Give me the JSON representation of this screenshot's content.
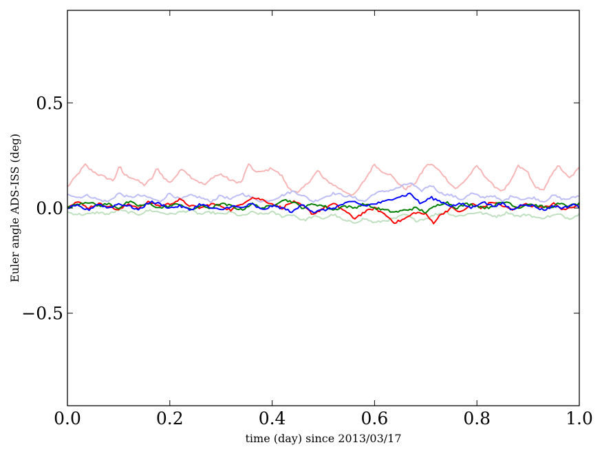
{
  "chart_data": {
    "type": "line",
    "title": "",
    "xlabel": "time (day) since 2013/03/17",
    "ylabel": "Euler angle ADS-ISS (deg)",
    "xlim": [
      0.0,
      1.0
    ],
    "ylim": [
      -0.94,
      0.94
    ],
    "xticks": [
      0.0,
      0.2,
      0.4,
      0.6,
      0.8,
      1.0
    ],
    "xtick_labels": [
      "0.0",
      "0.2",
      "0.4",
      "0.6",
      "0.8",
      "1.0"
    ],
    "yticks": [
      -0.5,
      0.0,
      0.5
    ],
    "ytick_labels": [
      "−0.5",
      "0.0",
      "0.5"
    ],
    "grid": false,
    "legend": "none",
    "series": [
      {
        "color": "#f7b6b6",
        "opacity": 1.0,
        "x": [
          0.0,
          0.02,
          0.036,
          0.04,
          0.06,
          0.08,
          0.09,
          0.102,
          0.11,
          0.13,
          0.15,
          0.165,
          0.175,
          0.19,
          0.2,
          0.215,
          0.225,
          0.24,
          0.26,
          0.27,
          0.285,
          0.3,
          0.32,
          0.34,
          0.355,
          0.36,
          0.38,
          0.4,
          0.42,
          0.43,
          0.45,
          0.47,
          0.49,
          0.5,
          0.52,
          0.54,
          0.56,
          0.58,
          0.6,
          0.61,
          0.63,
          0.65,
          0.66,
          0.68,
          0.7,
          0.71,
          0.73,
          0.75,
          0.76,
          0.78,
          0.8,
          0.81,
          0.83,
          0.85,
          0.865,
          0.88,
          0.9,
          0.91,
          0.93,
          0.95,
          0.96,
          0.98,
          1.0
        ],
        "y": [
          0.1,
          0.16,
          0.21,
          0.19,
          0.16,
          0.14,
          0.13,
          0.2,
          0.16,
          0.14,
          0.11,
          0.14,
          0.19,
          0.14,
          0.12,
          0.16,
          0.19,
          0.15,
          0.12,
          0.11,
          0.15,
          0.16,
          0.13,
          0.12,
          0.22,
          0.18,
          0.17,
          0.19,
          0.15,
          0.1,
          0.07,
          0.12,
          0.18,
          0.14,
          0.11,
          0.08,
          0.06,
          0.13,
          0.21,
          0.18,
          0.16,
          0.11,
          0.09,
          0.12,
          0.2,
          0.21,
          0.17,
          0.11,
          0.09,
          0.14,
          0.2,
          0.17,
          0.11,
          0.08,
          0.12,
          0.2,
          0.17,
          0.11,
          0.08,
          0.18,
          0.2,
          0.14,
          0.19
        ]
      },
      {
        "color": "#bdbdf5",
        "opacity": 1.0,
        "x": [
          0.0,
          0.02,
          0.04,
          0.06,
          0.08,
          0.1,
          0.12,
          0.14,
          0.16,
          0.18,
          0.2,
          0.22,
          0.24,
          0.26,
          0.28,
          0.3,
          0.32,
          0.34,
          0.36,
          0.38,
          0.4,
          0.42,
          0.44,
          0.46,
          0.48,
          0.5,
          0.52,
          0.54,
          0.56,
          0.58,
          0.6,
          0.62,
          0.64,
          0.66,
          0.67,
          0.69,
          0.71,
          0.73,
          0.75,
          0.77,
          0.79,
          0.81,
          0.83,
          0.85,
          0.87,
          0.89,
          0.91,
          0.93,
          0.95,
          0.97,
          0.99,
          1.0
        ],
        "y": [
          0.07,
          0.05,
          0.06,
          0.04,
          0.03,
          0.07,
          0.05,
          0.06,
          0.05,
          0.03,
          0.07,
          0.04,
          0.06,
          0.05,
          0.03,
          0.06,
          0.04,
          0.07,
          0.05,
          0.03,
          0.04,
          0.06,
          0.08,
          0.06,
          0.03,
          0.05,
          0.07,
          0.06,
          0.05,
          0.03,
          0.07,
          0.08,
          0.09,
          0.11,
          0.12,
          0.08,
          0.11,
          0.07,
          0.06,
          0.04,
          0.07,
          0.05,
          0.06,
          0.03,
          0.06,
          0.04,
          0.05,
          0.03,
          0.06,
          0.04,
          0.05,
          0.06
        ]
      },
      {
        "color": "#bfe0bf",
        "opacity": 1.0,
        "x": [
          0.0,
          0.02,
          0.04,
          0.06,
          0.08,
          0.1,
          0.12,
          0.14,
          0.16,
          0.18,
          0.2,
          0.22,
          0.24,
          0.26,
          0.28,
          0.3,
          0.32,
          0.34,
          0.36,
          0.38,
          0.4,
          0.42,
          0.44,
          0.46,
          0.48,
          0.5,
          0.52,
          0.54,
          0.56,
          0.58,
          0.6,
          0.62,
          0.64,
          0.66,
          0.68,
          0.7,
          0.72,
          0.74,
          0.76,
          0.78,
          0.8,
          0.82,
          0.84,
          0.86,
          0.88,
          0.9,
          0.92,
          0.94,
          0.96,
          0.98,
          1.0
        ],
        "y": [
          -0.02,
          -0.03,
          -0.03,
          -0.02,
          -0.03,
          -0.01,
          -0.02,
          -0.03,
          -0.01,
          -0.02,
          -0.03,
          -0.02,
          -0.01,
          -0.03,
          -0.02,
          -0.03,
          -0.02,
          -0.04,
          -0.02,
          -0.03,
          -0.02,
          -0.04,
          -0.03,
          -0.06,
          -0.04,
          -0.05,
          -0.03,
          -0.06,
          -0.07,
          -0.05,
          -0.07,
          -0.06,
          -0.05,
          -0.03,
          -0.06,
          -0.05,
          -0.03,
          -0.02,
          -0.04,
          -0.03,
          -0.02,
          -0.03,
          -0.04,
          -0.02,
          -0.04,
          -0.03,
          -0.05,
          -0.04,
          -0.03,
          -0.05,
          -0.03
        ]
      },
      {
        "color": "#ff0000",
        "opacity": 1.0,
        "x": [
          0.0,
          0.02,
          0.04,
          0.06,
          0.08,
          0.1,
          0.12,
          0.14,
          0.16,
          0.18,
          0.2,
          0.22,
          0.24,
          0.26,
          0.28,
          0.3,
          0.32,
          0.34,
          0.36,
          0.38,
          0.4,
          0.42,
          0.44,
          0.46,
          0.48,
          0.5,
          0.52,
          0.54,
          0.56,
          0.58,
          0.6,
          0.62,
          0.64,
          0.66,
          0.68,
          0.7,
          0.715,
          0.73,
          0.75,
          0.77,
          0.79,
          0.81,
          0.83,
          0.85,
          0.87,
          0.89,
          0.91,
          0.93,
          0.95,
          0.97,
          0.99,
          1.0
        ],
        "y": [
          0.01,
          0.03,
          0.0,
          0.02,
          0.01,
          -0.01,
          0.02,
          0.0,
          0.03,
          0.01,
          0.02,
          0.04,
          0.01,
          0.0,
          0.02,
          0.01,
          -0.01,
          0.02,
          0.05,
          0.04,
          0.02,
          0.0,
          0.03,
          0.01,
          -0.03,
          0.0,
          0.02,
          -0.01,
          -0.05,
          -0.02,
          0.0,
          -0.03,
          -0.07,
          -0.05,
          -0.02,
          -0.03,
          -0.07,
          -0.03,
          0.0,
          -0.02,
          0.02,
          0.0,
          0.03,
          0.01,
          -0.01,
          0.02,
          0.01,
          0.0,
          0.02,
          -0.01,
          0.01,
          0.02
        ]
      },
      {
        "color": "#008000",
        "opacity": 1.0,
        "x": [
          0.0,
          0.02,
          0.04,
          0.06,
          0.08,
          0.1,
          0.12,
          0.14,
          0.16,
          0.18,
          0.2,
          0.22,
          0.24,
          0.26,
          0.28,
          0.3,
          0.32,
          0.34,
          0.36,
          0.38,
          0.4,
          0.42,
          0.44,
          0.46,
          0.48,
          0.5,
          0.52,
          0.54,
          0.56,
          0.58,
          0.6,
          0.62,
          0.64,
          0.66,
          0.68,
          0.7,
          0.72,
          0.74,
          0.76,
          0.78,
          0.8,
          0.82,
          0.84,
          0.86,
          0.88,
          0.9,
          0.92,
          0.94,
          0.96,
          0.98,
          1.0
        ],
        "y": [
          0.0,
          0.02,
          0.03,
          0.01,
          0.02,
          0.0,
          0.03,
          0.01,
          0.02,
          0.0,
          0.01,
          0.02,
          -0.01,
          0.01,
          0.0,
          0.02,
          0.01,
          -0.01,
          0.02,
          0.0,
          0.01,
          0.04,
          0.03,
          0.0,
          0.02,
          0.01,
          -0.01,
          0.01,
          0.0,
          0.02,
          0.0,
          -0.01,
          -0.02,
          -0.01,
          0.0,
          -0.02,
          0.01,
          0.03,
          0.0,
          0.02,
          0.01,
          0.0,
          0.02,
          0.03,
          0.0,
          0.02,
          0.01,
          0.0,
          0.02,
          0.01,
          0.02
        ]
      },
      {
        "color": "#0000ff",
        "opacity": 1.0,
        "x": [
          0.0,
          0.02,
          0.04,
          0.06,
          0.08,
          0.1,
          0.12,
          0.14,
          0.16,
          0.18,
          0.2,
          0.22,
          0.24,
          0.26,
          0.28,
          0.3,
          0.32,
          0.34,
          0.36,
          0.38,
          0.4,
          0.42,
          0.44,
          0.46,
          0.48,
          0.5,
          0.52,
          0.54,
          0.56,
          0.58,
          0.6,
          0.62,
          0.64,
          0.66,
          0.67,
          0.69,
          0.71,
          0.73,
          0.75,
          0.77,
          0.79,
          0.81,
          0.83,
          0.85,
          0.87,
          0.89,
          0.91,
          0.93,
          0.95,
          0.97,
          0.99,
          1.0
        ],
        "y": [
          0.0,
          0.01,
          -0.01,
          0.02,
          0.0,
          0.02,
          0.01,
          -0.01,
          0.03,
          0.02,
          0.0,
          0.01,
          -0.01,
          0.02,
          0.0,
          -0.01,
          0.01,
          0.0,
          0.02,
          -0.01,
          0.01,
          0.0,
          -0.02,
          0.02,
          -0.02,
          -0.01,
          0.0,
          0.02,
          0.03,
          0.01,
          0.02,
          0.03,
          0.05,
          0.06,
          0.07,
          0.02,
          0.05,
          0.03,
          0.01,
          0.02,
          0.0,
          0.03,
          0.01,
          0.02,
          -0.01,
          0.02,
          0.01,
          -0.01,
          0.01,
          0.0,
          0.02,
          0.0
        ]
      }
    ]
  }
}
